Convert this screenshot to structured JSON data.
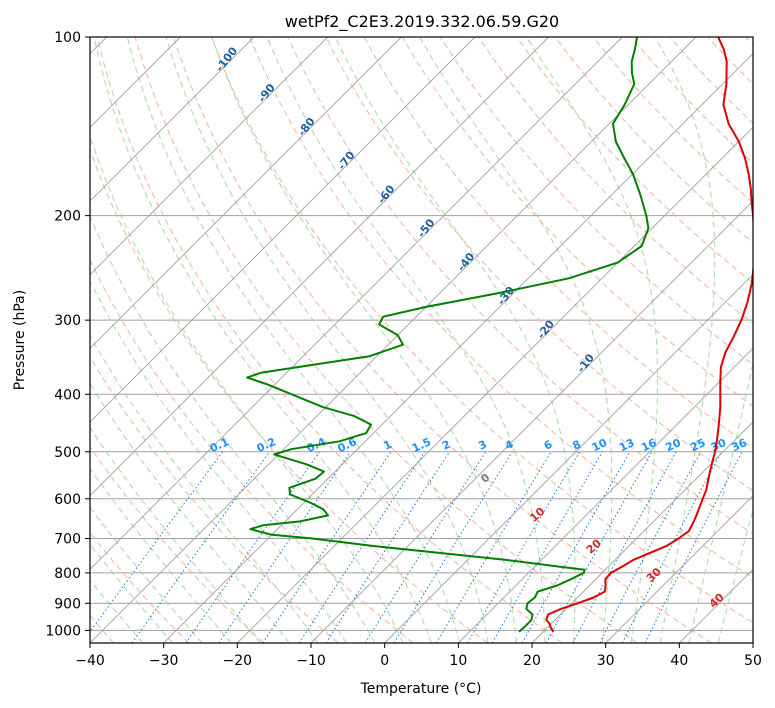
{
  "chart_data": {
    "type": "line",
    "title": "wetPf2_C2E3.2019.332.06.59.G20",
    "xlabel": "Temperature (°C)",
    "ylabel": "Pressure (hPa)",
    "xlim": [
      -40,
      50
    ],
    "ylim": [
      1050,
      100
    ],
    "y_scale": "log",
    "grid": true,
    "x_ticks": [
      "−40",
      "−30",
      "−20",
      "−10",
      "0",
      "10",
      "20",
      "30",
      "40",
      "50"
    ],
    "y_ticks": [
      "100",
      "200",
      "300",
      "400",
      "500",
      "600",
      "700",
      "800",
      "900",
      "1000"
    ],
    "colors": {
      "temperature": "#e00000",
      "dewpoint": "#008000",
      "isotherm": "#a0a0a0",
      "dry_adiabat": "#f4a58a",
      "moist_adiabat": "#8fd18f",
      "mixing_ratio": "#1f77d4",
      "mixing_label": "#1e90ff",
      "dry_label": "#d62728",
      "moist_label": "#1f5f9f",
      "zero_label": "#808080"
    },
    "series": [
      {
        "name": "",
        "kind": "temperature",
        "points": [
          [
            1005,
            21.4
          ],
          [
            990,
            20.5
          ],
          [
            975,
            19.8
          ],
          [
            960,
            18.8
          ],
          [
            940,
            18.3
          ],
          [
            920,
            19.3
          ],
          [
            900,
            20.8
          ],
          [
            880,
            22.2
          ],
          [
            860,
            22.9
          ],
          [
            840,
            22.2
          ],
          [
            820,
            21.3
          ],
          [
            800,
            21.2
          ],
          [
            780,
            21.9
          ],
          [
            760,
            22.5
          ],
          [
            740,
            23.8
          ],
          [
            720,
            25.1
          ],
          [
            700,
            25.7
          ],
          [
            680,
            26.1
          ],
          [
            660,
            25.6
          ],
          [
            640,
            25.0
          ],
          [
            620,
            24.3
          ],
          [
            600,
            23.6
          ],
          [
            580,
            22.9
          ],
          [
            560,
            21.9
          ],
          [
            540,
            20.9
          ],
          [
            520,
            19.9
          ],
          [
            500,
            18.9
          ],
          [
            480,
            17.7
          ],
          [
            460,
            16.4
          ],
          [
            440,
            15.0
          ],
          [
            420,
            13.5
          ],
          [
            400,
            11.8
          ],
          [
            380,
            10.0
          ],
          [
            360,
            8.2
          ],
          [
            340,
            6.8
          ],
          [
            320,
            5.8
          ],
          [
            300,
            4.6
          ],
          [
            280,
            3.0
          ],
          [
            260,
            1.0
          ],
          [
            240,
            -1.5
          ],
          [
            220,
            -4.5
          ],
          [
            200,
            -8.0
          ],
          [
            190,
            -10.0
          ],
          [
            180,
            -12.0
          ],
          [
            170,
            -14.3
          ],
          [
            160,
            -16.9
          ],
          [
            150,
            -20.0
          ],
          [
            140,
            -23.8
          ],
          [
            130,
            -27.1
          ],
          [
            120,
            -29.5
          ],
          [
            110,
            -32.5
          ],
          [
            105,
            -34.5
          ],
          [
            100,
            -37.0
          ]
        ]
      },
      {
        "name": "",
        "kind": "dewpoint",
        "points": [
          [
            1005,
            16.7
          ],
          [
            990,
            16.8
          ],
          [
            975,
            16.8
          ],
          [
            960,
            16.8
          ],
          [
            940,
            16.2
          ],
          [
            920,
            14.6
          ],
          [
            900,
            14.0
          ],
          [
            880,
            14.2
          ],
          [
            860,
            13.8
          ],
          [
            840,
            15.6
          ],
          [
            820,
            16.6
          ],
          [
            800,
            17.5
          ],
          [
            790,
            17.2
          ],
          [
            780,
            13.0
          ],
          [
            760,
            5.0
          ],
          [
            740,
            -5.0
          ],
          [
            720,
            -15.0
          ],
          [
            700,
            -24.0
          ],
          [
            690,
            -30.0
          ],
          [
            675,
            -33.7
          ],
          [
            665,
            -32.5
          ],
          [
            655,
            -28.0
          ],
          [
            640,
            -25.0
          ],
          [
            625,
            -26.5
          ],
          [
            610,
            -29.0
          ],
          [
            590,
            -33.0
          ],
          [
            575,
            -34.0
          ],
          [
            555,
            -31.7
          ],
          [
            540,
            -31.5
          ],
          [
            525,
            -34.8
          ],
          [
            505,
            -40.6
          ],
          [
            495,
            -39.0
          ],
          [
            480,
            -33.5
          ],
          [
            465,
            -31.0
          ],
          [
            450,
            -31.5
          ],
          [
            435,
            -35.0
          ],
          [
            420,
            -40.5
          ],
          [
            400,
            -46.4
          ],
          [
            385,
            -51.0
          ],
          [
            375,
            -54.7
          ],
          [
            368,
            -53.5
          ],
          [
            355,
            -46.5
          ],
          [
            345,
            -41.0
          ],
          [
            330,
            -38.0
          ],
          [
            318,
            -40.0
          ],
          [
            305,
            -44.0
          ],
          [
            296,
            -44.5
          ],
          [
            285,
            -40.0
          ],
          [
            270,
            -32.0
          ],
          [
            255,
            -24.5
          ],
          [
            240,
            -20.0
          ],
          [
            225,
            -19.0
          ],
          [
            210,
            -20.5
          ],
          [
            200,
            -22.5
          ],
          [
            185,
            -26.0
          ],
          [
            170,
            -30.0
          ],
          [
            160,
            -33.3
          ],
          [
            150,
            -36.7
          ],
          [
            140,
            -39.5
          ],
          [
            130,
            -40.5
          ],
          [
            120,
            -42.0
          ],
          [
            115,
            -43.8
          ],
          [
            110,
            -45.4
          ],
          [
            105,
            -46.6
          ],
          [
            100,
            -48.0
          ]
        ]
      }
    ],
    "dry_adiabat_labels": [
      "0",
      "10",
      "20",
      "30",
      "40"
    ],
    "moist_adiabat_labels": [
      "-100",
      "-90",
      "-80",
      "-70",
      "-60",
      "-50",
      "-40",
      "-30",
      "-20",
      "-10"
    ],
    "mixing_ratio_labels": [
      "0.1",
      "0.2",
      "0.4",
      "0.6",
      "1",
      "1.5",
      "2",
      "3",
      "4",
      "6",
      "8",
      "10",
      "13",
      "16",
      "20",
      "25",
      "30",
      "36"
    ],
    "mixing_ratio_values": [
      0.1,
      0.2,
      0.4,
      0.6,
      1,
      1.5,
      2,
      3,
      4,
      6,
      8,
      10,
      13,
      16,
      20,
      25,
      30,
      36
    ]
  }
}
